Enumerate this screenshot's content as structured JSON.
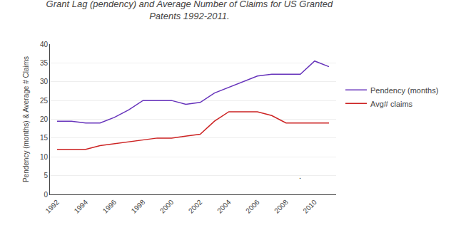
{
  "chart_data": {
    "type": "line",
    "title": "Grant Lag (pendency) and Average Number of Claims for US Granted\nPatents 1992-2011.",
    "ylabel": "Pendency (months) & Average # Claims",
    "x": [
      1992,
      1993,
      1994,
      1995,
      1996,
      1997,
      1998,
      1999,
      2000,
      2001,
      2002,
      2003,
      2004,
      2005,
      2006,
      2007,
      2008,
      2009,
      2010,
      2011
    ],
    "series": [
      {
        "name": "Pendency (months)",
        "color": "#6633BB",
        "values": [
          19.5,
          19.5,
          19.0,
          19.0,
          20.5,
          22.5,
          25.0,
          25.0,
          25.0,
          24.0,
          24.5,
          27.0,
          28.5,
          30.0,
          31.5,
          32.0,
          32.0,
          32.0,
          35.5,
          34.0
        ]
      },
      {
        "name": "Avg# claims",
        "color": "#CC2222",
        "values": [
          12.0,
          12.0,
          12.0,
          13.0,
          13.5,
          14.0,
          14.5,
          15.0,
          15.0,
          15.5,
          16.0,
          19.5,
          22.0,
          22.0,
          22.0,
          21.0,
          19.0,
          19.0,
          19.0,
          19.0
        ]
      }
    ],
    "xlim": [
      1991.5,
      2011.5
    ],
    "xticks": [
      1992,
      1994,
      1996,
      1998,
      2000,
      2002,
      2004,
      2006,
      2008,
      2010
    ],
    "ylim": [
      0,
      40
    ],
    "yticks": [
      0,
      5,
      10,
      15,
      20,
      25,
      30,
      35,
      40
    ],
    "grid": true,
    "legend": "right",
    "annotations": [
      {
        "text": ".",
        "x": 2009,
        "y": 5
      }
    ]
  }
}
